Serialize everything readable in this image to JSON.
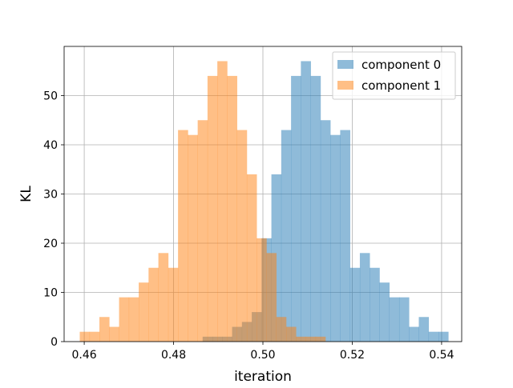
{
  "chart_data": {
    "type": "histogram",
    "title": "",
    "xlabel": "iteration",
    "ylabel": "KL",
    "xlim": [
      0.4555,
      0.5445
    ],
    "ylim": [
      0,
      60
    ],
    "xticks": [
      0.46,
      0.48,
      0.5,
      0.52,
      0.54
    ],
    "xtick_labels": [
      "0.46",
      "0.48",
      "0.50",
      "0.52",
      "0.54"
    ],
    "yticks": [
      0,
      10,
      20,
      30,
      40,
      50
    ],
    "ytick_labels": [
      "0",
      "10",
      "20",
      "30",
      "40",
      "50"
    ],
    "grid": true,
    "legend_position": "upper right",
    "series": [
      {
        "name": "component 0",
        "color": "#1f77b4",
        "alpha": 0.5,
        "bin_edges": [
          0.4865,
          0.4887,
          0.4909,
          0.4931,
          0.4953,
          0.4975,
          0.4997,
          0.5019,
          0.5041,
          0.5063,
          0.5085,
          0.5107,
          0.5129,
          0.5151,
          0.5173,
          0.5195,
          0.5217,
          0.5239,
          0.5261,
          0.5283,
          0.5305,
          0.5327,
          0.5349,
          0.5371,
          0.5393,
          0.5415
        ],
        "counts": [
          1,
          1,
          1,
          3,
          4,
          6,
          21,
          34,
          43,
          54,
          57,
          54,
          45,
          42,
          43,
          15,
          18,
          15,
          12,
          9,
          9,
          3,
          5,
          2,
          2
        ]
      },
      {
        "name": "component 1",
        "color": "#ff7f0e",
        "alpha": 0.5,
        "bin_edges": [
          0.459,
          0.4612,
          0.4634,
          0.4656,
          0.4678,
          0.47,
          0.4722,
          0.4744,
          0.4766,
          0.4788,
          0.481,
          0.4832,
          0.4854,
          0.4876,
          0.4898,
          0.492,
          0.4942,
          0.4964,
          0.4986,
          0.5008,
          0.503,
          0.5052,
          0.5074,
          0.5096,
          0.5118,
          0.514
        ],
        "counts": [
          2,
          2,
          5,
          3,
          9,
          9,
          12,
          15,
          18,
          15,
          43,
          42,
          45,
          54,
          57,
          54,
          43,
          34,
          21,
          18,
          5,
          3,
          1,
          1,
          1
        ]
      }
    ]
  }
}
